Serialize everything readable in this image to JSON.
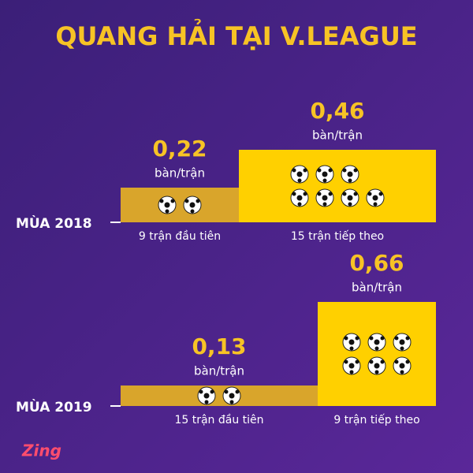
{
  "title": "QUANG HẢI TẠI V.LEAGUE",
  "unit": "bàn/trận",
  "logo": "Zing",
  "seasons": [
    {
      "label": "MÙA 2018",
      "segments": [
        {
          "caption": "9 trận đầu tiên",
          "rate": {
            "value": 0.22,
            "label": "0,22"
          },
          "goals": 2
        },
        {
          "caption": "15 trận tiếp theo",
          "rate": {
            "value": 0.46,
            "label": "0,46"
          },
          "goals": 7
        }
      ]
    },
    {
      "label": "MÙA 2019",
      "segments": [
        {
          "caption": "15 trận đầu tiên",
          "rate": {
            "value": 0.13,
            "label": "0,13"
          },
          "goals": 2
        },
        {
          "caption": "9 trận tiếp theo",
          "rate": {
            "value": 0.66,
            "label": "0,66"
          },
          "goals": 6
        }
      ]
    }
  ]
}
